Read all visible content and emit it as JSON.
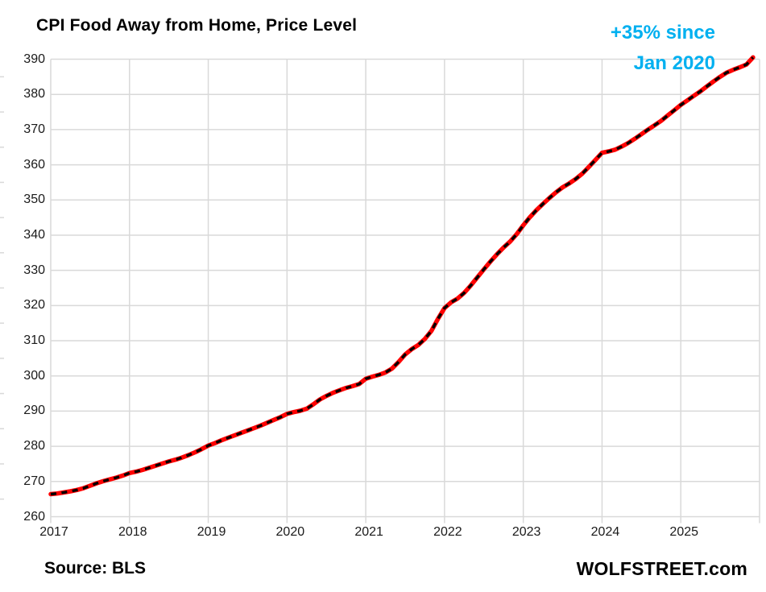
{
  "title": "CPI Food Away from Home, Price Level",
  "annotation": {
    "line1": "+35% since",
    "line2": "Jan 2020",
    "color": "#00B0F0"
  },
  "source_note": "Source: BLS",
  "branding": "WOLFSTREET.com",
  "colors": {
    "line_red": "#FF0000",
    "line_dash_overlay": "#000000",
    "gridline": "#D9D9D9",
    "axis_text": "#1a1a1a",
    "background": "#ffffff"
  },
  "chart_data": {
    "type": "line",
    "title": "CPI Food Away from Home, Price Level",
    "xlabel": "",
    "ylabel": "",
    "x_unit": "month",
    "x_start": "2017-01",
    "x_end": "2025-12",
    "x_tick_labels": [
      "2017",
      "2018",
      "2019",
      "2020",
      "2021",
      "2022",
      "2023",
      "2024",
      "2025"
    ],
    "y_tick_labels": [
      "390",
      "380",
      "370",
      "360",
      "350",
      "340",
      "330",
      "320",
      "310",
      "300",
      "290",
      "280",
      "270",
      "260"
    ],
    "ylim": [
      260,
      390
    ],
    "y_step": 10,
    "grid": true,
    "legend": "none",
    "annotation_text": "+35% since Jan 2020",
    "series": [
      {
        "name": "CPI Food Away from Home, price level index, monthly",
        "color": "#FF0000",
        "dash_overlay_color": "#000000",
        "values": [
          266.4,
          266.6,
          266.9,
          267.2,
          267.6,
          268.1,
          268.8,
          269.5,
          270.1,
          270.6,
          271.1,
          271.7,
          272.4,
          272.8,
          273.3,
          273.9,
          274.5,
          275.1,
          275.7,
          276.2,
          276.8,
          277.5,
          278.3,
          279.2,
          280.2,
          280.9,
          281.7,
          282.4,
          283.1,
          283.8,
          284.5,
          285.2,
          285.9,
          286.7,
          287.5,
          288.3,
          289.2,
          289.7,
          290.1,
          290.7,
          291.9,
          293.3,
          294.3,
          295.2,
          295.9,
          296.6,
          297.1,
          297.7,
          299.2,
          299.8,
          300.3,
          301.0,
          302.1,
          304.0,
          306.1,
          307.6,
          308.8,
          310.5,
          312.8,
          316.2,
          319.3,
          320.9,
          322.0,
          323.6,
          325.7,
          328.0,
          330.3,
          332.5,
          334.6,
          336.5,
          338.2,
          340.3,
          342.8,
          345.1,
          347.1,
          348.9,
          350.6,
          352.2,
          353.6,
          354.7,
          356.0,
          357.5,
          359.4,
          361.4,
          363.4,
          363.8,
          364.3,
          365.2,
          366.2,
          367.4,
          368.7,
          370.0,
          371.2,
          372.5,
          374.0,
          375.5,
          377.0,
          378.3,
          379.6,
          380.9,
          382.3,
          383.7,
          385.0,
          386.2,
          387.0,
          387.7,
          388.5,
          390.5
        ]
      }
    ]
  }
}
